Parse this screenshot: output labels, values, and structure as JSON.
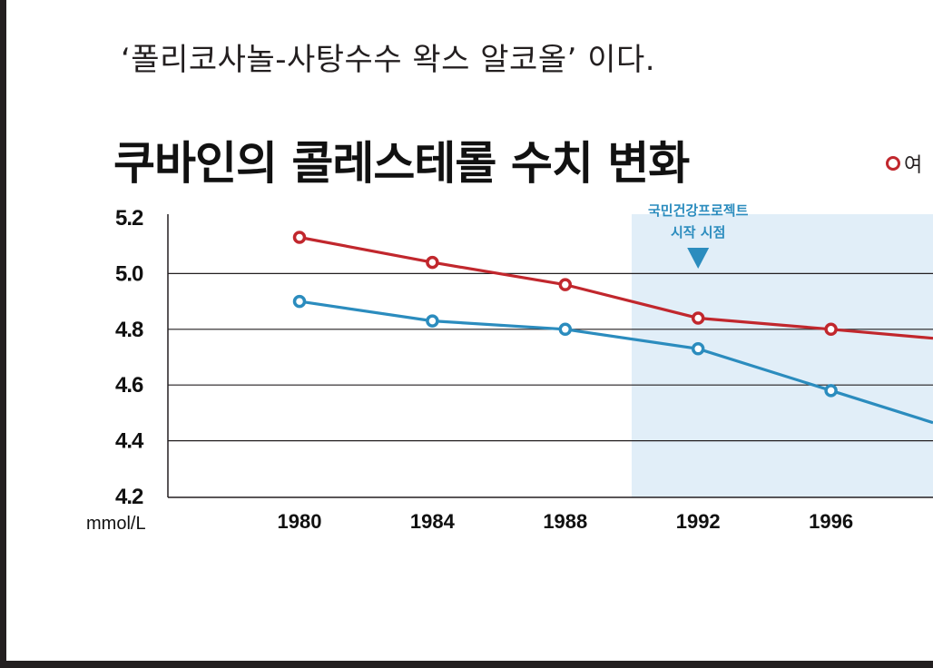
{
  "intro_text": "‘폴리코사놀-사탕수수 왁스 알코올’ 이다.",
  "colors": {
    "women": "#c1272d",
    "men": "#2b8cbe",
    "highlight": "#e1eef8",
    "annotation": "#2b8cbe"
  },
  "chart_data": {
    "type": "line",
    "title": "쿠바인의 콜레스테롤 수치 변화",
    "ylabel": "mmol/L",
    "xlabel": "",
    "ylim": [
      4.2,
      5.2
    ],
    "yticks": [
      "5.2",
      "5.0",
      "4.8",
      "4.6",
      "4.4",
      "4.2"
    ],
    "categories": [
      "1980",
      "1984",
      "1988",
      "1992",
      "1996"
    ],
    "legend_label": "여",
    "legend_position": "top-right",
    "grid": true,
    "series": [
      {
        "name": "여",
        "color": "#c1272d",
        "values": [
          5.13,
          5.04,
          4.96,
          4.84,
          4.8
        ]
      },
      {
        "values": [
          4.9,
          4.83,
          4.8,
          4.73,
          4.58
        ]
      }
    ],
    "highlight_from": 1990,
    "annotation": {
      "line1": "국민건강프로젝트",
      "line2": "시작 시점",
      "year": 1992
    }
  }
}
